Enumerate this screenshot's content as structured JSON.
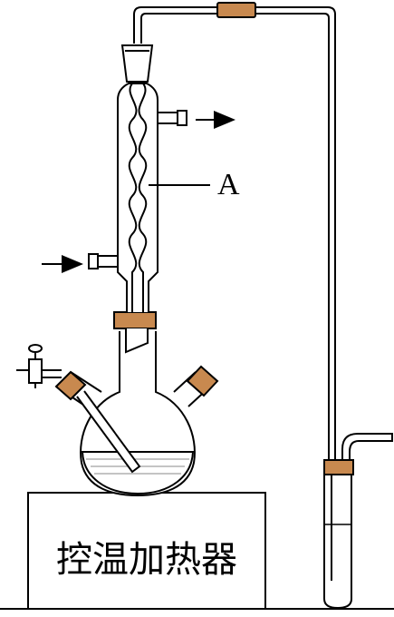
{
  "labels": {
    "condenser_label": "A",
    "heater_label": "控温加热器"
  },
  "colors": {
    "line": "#000000",
    "stopper": "#c8894f",
    "liquid_hatch": "#8a8a8a"
  }
}
